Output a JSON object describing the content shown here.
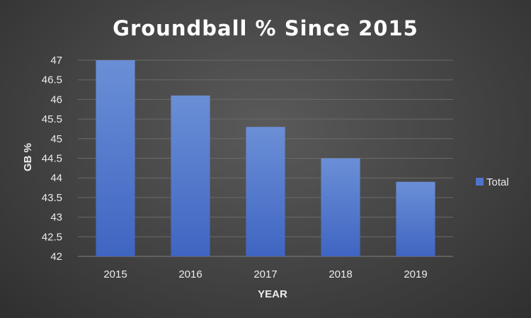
{
  "chart_data": {
    "type": "bar",
    "title": "Groundball % Since 2015",
    "xlabel": "YEAR",
    "ylabel": "GB %",
    "categories": [
      "2015",
      "2016",
      "2017",
      "2018",
      "2019"
    ],
    "series": [
      {
        "name": "Total",
        "values": [
          47.0,
          46.1,
          45.3,
          44.5,
          43.9
        ]
      }
    ],
    "ylim": [
      42,
      47
    ],
    "yticks": [
      "42",
      "42.5",
      "43",
      "43.5",
      "44",
      "44.5",
      "45",
      "45.5",
      "46",
      "46.5",
      "47"
    ],
    "grid": true,
    "legend_position": "right"
  },
  "colors": {
    "bar_top": "#6b8fd6",
    "bar_bottom": "#3f65c2",
    "gridline": "#6a6a6a"
  }
}
